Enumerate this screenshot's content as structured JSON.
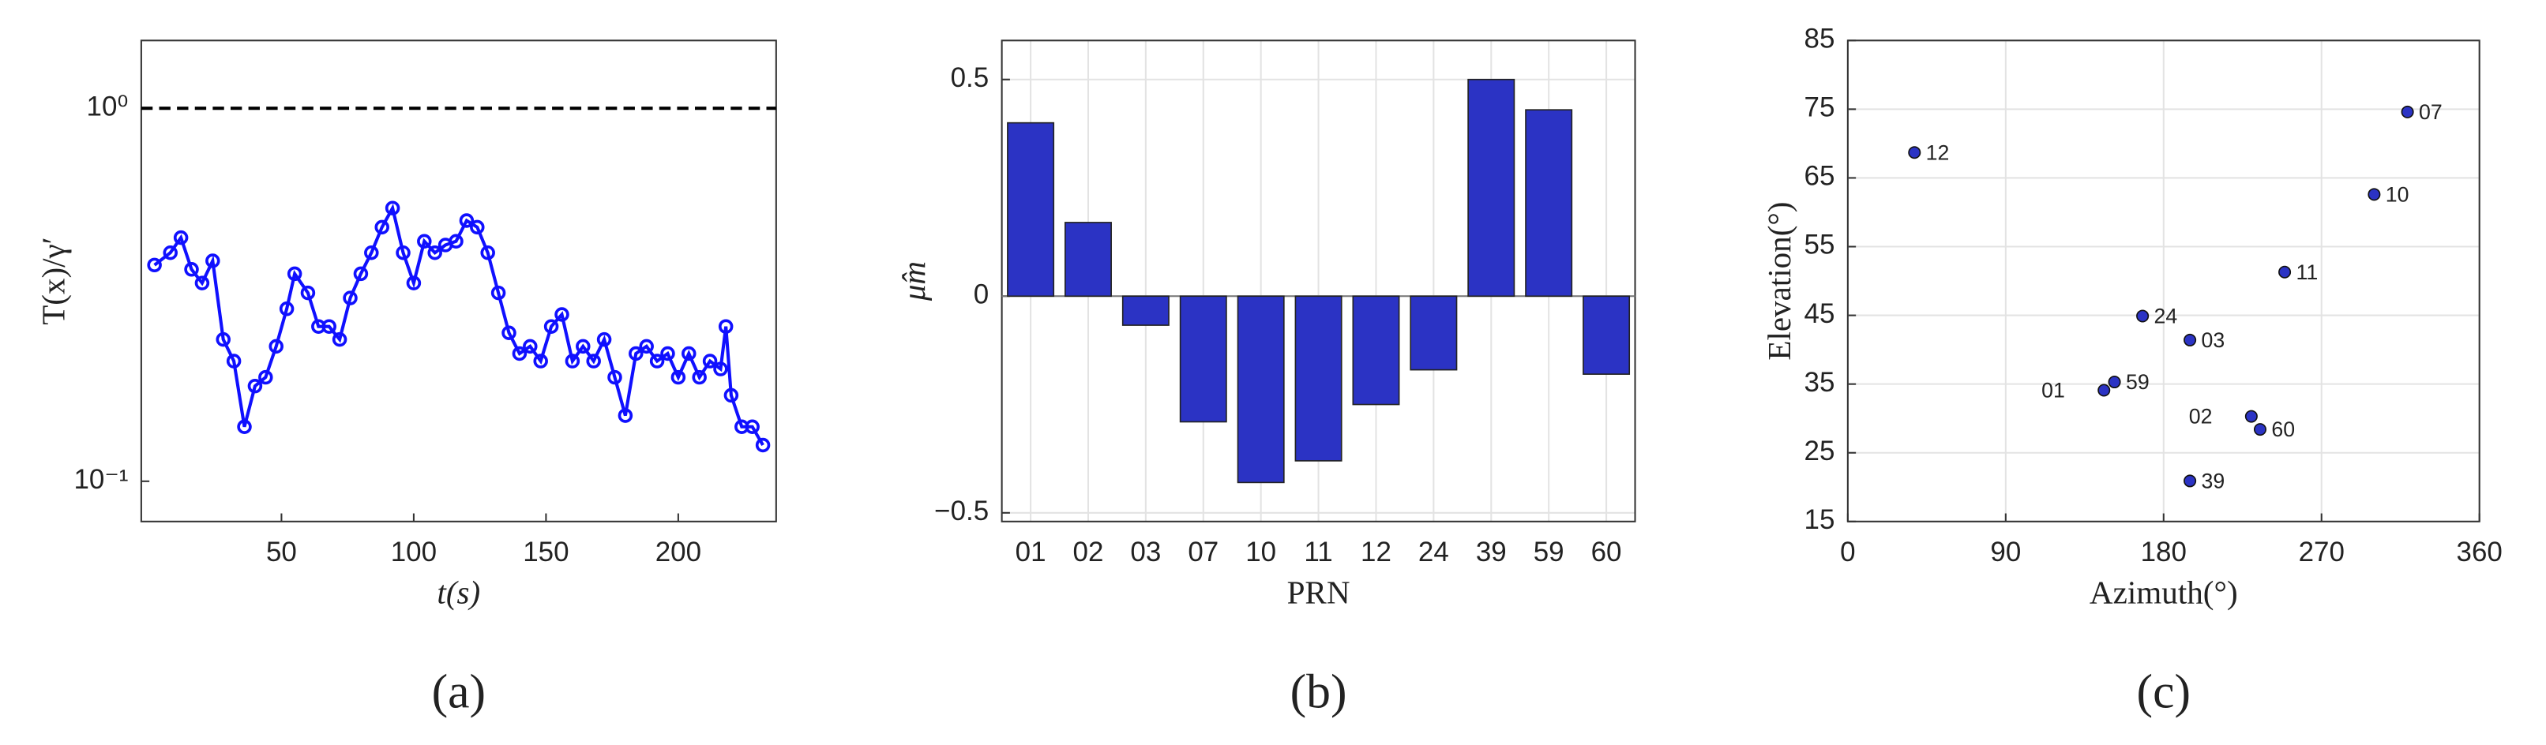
{
  "chart_data": [
    {
      "type": "line",
      "caption": "(a)",
      "xlabel": "t(s)",
      "ylabel": "T(x)/γ′",
      "ylog": true,
      "hline": 1,
      "color": "#1010ff",
      "xlim": [
        -3,
        237
      ],
      "xticks": [
        50,
        100,
        150,
        200
      ],
      "ylim": [
        0.078,
        1.52
      ],
      "yticks": [
        {
          "value": 0.1,
          "label": "10⁻¹"
        },
        {
          "value": 1,
          "label": "10⁰"
        }
      ],
      "x": [
        2,
        8,
        12,
        16,
        20,
        24,
        28,
        32,
        36,
        40,
        44,
        48,
        52,
        55,
        60,
        64,
        68,
        72,
        76,
        80,
        84,
        88,
        92,
        96,
        100,
        104,
        108,
        112,
        116,
        120,
        124,
        128,
        132,
        136,
        140,
        144,
        148,
        152,
        156,
        160,
        164,
        168,
        172,
        176,
        180,
        184,
        188,
        192,
        196,
        200,
        204,
        208,
        212,
        216,
        218,
        220,
        224,
        228,
        232
      ],
      "values": [
        0.38,
        0.41,
        0.45,
        0.37,
        0.34,
        0.39,
        0.24,
        0.21,
        0.14,
        0.18,
        0.19,
        0.23,
        0.29,
        0.36,
        0.32,
        0.26,
        0.26,
        0.24,
        0.31,
        0.36,
        0.41,
        0.48,
        0.54,
        0.41,
        0.34,
        0.44,
        0.41,
        0.43,
        0.44,
        0.5,
        0.48,
        0.41,
        0.32,
        0.25,
        0.22,
        0.23,
        0.21,
        0.26,
        0.28,
        0.21,
        0.23,
        0.21,
        0.24,
        0.19,
        0.15,
        0.22,
        0.23,
        0.21,
        0.22,
        0.19,
        0.22,
        0.19,
        0.21,
        0.2,
        0.26,
        0.17,
        0.14,
        0.14,
        0.125
      ]
    },
    {
      "type": "bar",
      "caption": "(b)",
      "xlabel": "PRN",
      "ylabel": "μ̂m",
      "color": "#2b33c4",
      "grid": true,
      "categories": [
        "01",
        "02",
        "03",
        "07",
        "10",
        "11",
        "12",
        "24",
        "39",
        "59",
        "60"
      ],
      "values": [
        0.4,
        0.17,
        -0.067,
        -0.29,
        -0.43,
        -0.38,
        -0.25,
        -0.17,
        0.5,
        0.43,
        -0.18
      ],
      "ylim": [
        -0.52,
        0.59
      ],
      "yticks": [
        {
          "value": -0.5,
          "label": "−0.5"
        },
        0,
        0.5
      ]
    },
    {
      "type": "scatter",
      "caption": "(c)",
      "xlabel": "Azimuth(°)",
      "ylabel": "Elevation(°)",
      "color": "#2b33c4",
      "grid": true,
      "point_labels": [
        "12",
        "07",
        "10",
        "11",
        "24",
        "03",
        "59",
        "01",
        "02",
        "60",
        "39"
      ],
      "x": [
        38,
        319,
        300,
        249,
        168,
        195,
        152,
        146,
        230,
        235,
        195
      ],
      "values": [
        68.7,
        74.6,
        62.6,
        51.3,
        44.9,
        41.4,
        35.3,
        34.1,
        30.3,
        28.4,
        20.9
      ],
      "xlim": [
        0,
        360
      ],
      "xticks": [
        0,
        90,
        180,
        270,
        360
      ],
      "ylim": [
        15,
        85
      ],
      "yticks": [
        15,
        25,
        35,
        45,
        55,
        65,
        75,
        85
      ]
    }
  ]
}
